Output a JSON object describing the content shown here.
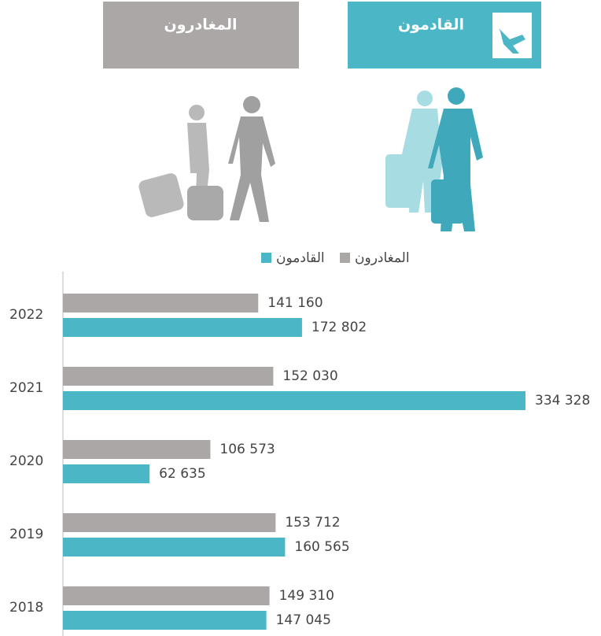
{
  "tabs": [
    "القادمون",
    "المغادرون"
  ],
  "chart_data": {
    "type": "bar",
    "orientation": "horizontal",
    "categories": [
      "2022",
      "2021",
      "2020",
      "2019",
      "2018"
    ],
    "series": [
      {
        "name": "المغادرون",
        "color": "#aaa7a6",
        "values": [
          141160,
          152030,
          106573,
          153712,
          149310
        ],
        "value_labels": [
          "141 160",
          "152 030",
          "106 573",
          "153 712",
          "149 310"
        ]
      },
      {
        "name": "القادمون",
        "color": "#4bb6c6",
        "values": [
          172802,
          334328,
          62635,
          160565,
          147045
        ],
        "value_labels": [
          "172 802",
          "334 328",
          "62 635",
          "160 565",
          "147 045"
        ]
      }
    ]
  }
}
